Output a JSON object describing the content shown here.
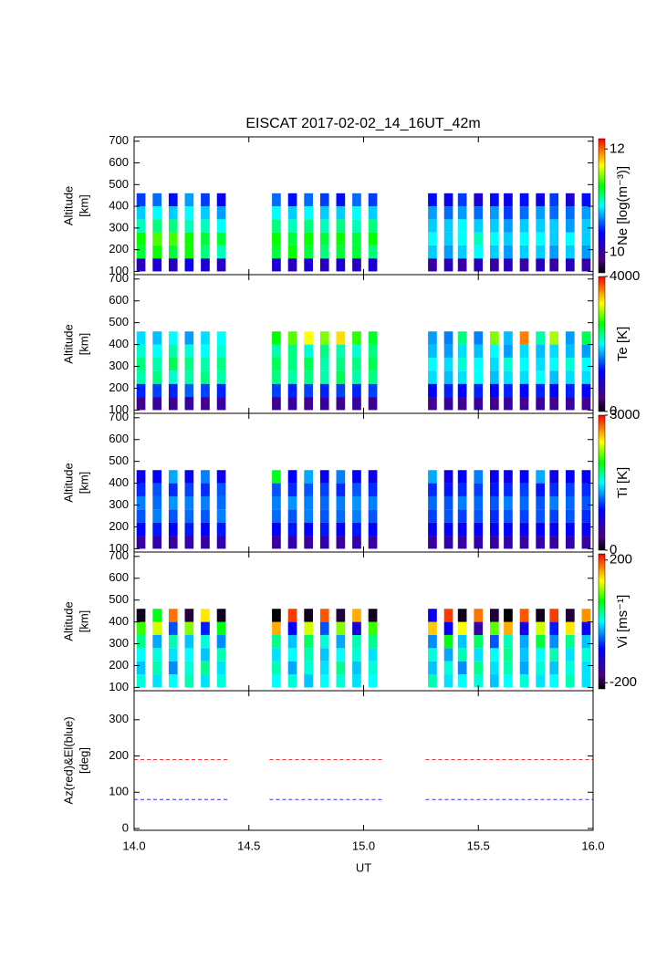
{
  "title": "EISCAT 2017-02-02_14_16UT_42m",
  "chart_data": [
    {
      "type": "heatmap",
      "ylabel": [
        "Altitude",
        "[km]"
      ],
      "colorbar_label": "Ne [log(m⁻³)]",
      "clim": [
        9.6,
        12.2
      ],
      "cticks": [
        10,
        12
      ],
      "xlim": [
        14,
        16
      ],
      "ylim": [
        85,
        720
      ],
      "yticks": [
        100,
        200,
        300,
        400,
        500,
        600,
        700
      ],
      "x": [
        14.03,
        14.1,
        14.17,
        14.24,
        14.31,
        14.38,
        14.62,
        14.69,
        14.76,
        14.83,
        14.9,
        14.97,
        15.04,
        15.3,
        15.37,
        15.43,
        15.5,
        15.57,
        15.63,
        15.7,
        15.77,
        15.83,
        15.9,
        15.97
      ],
      "y": [
        130,
        190,
        250,
        310,
        370,
        430
      ],
      "values": [
        [
          10.1,
          11.2,
          11.3,
          11.0,
          10.8,
          10.5
        ],
        [
          10.2,
          11.3,
          11.4,
          11.1,
          10.9,
          10.6
        ],
        [
          10.1,
          11.2,
          11.4,
          11.1,
          10.8,
          10.4
        ],
        [
          10.3,
          11.3,
          11.3,
          11.0,
          10.9,
          10.7
        ],
        [
          10.2,
          11.1,
          11.2,
          11.0,
          10.8,
          10.5
        ],
        [
          10.1,
          11.0,
          11.2,
          10.9,
          10.7,
          10.3
        ],
        [
          10.2,
          11.2,
          11.3,
          11.1,
          10.9,
          10.6
        ],
        [
          10.1,
          11.3,
          11.2,
          11.0,
          10.8,
          10.4
        ],
        [
          10.2,
          11.2,
          11.3,
          11.1,
          10.9,
          10.6
        ],
        [
          10.1,
          11.1,
          11.2,
          11.0,
          10.8,
          10.5
        ],
        [
          10.2,
          11.2,
          11.3,
          11.1,
          10.8,
          10.4
        ],
        [
          10.1,
          11.2,
          11.2,
          11.0,
          10.9,
          10.6
        ],
        [
          10.2,
          11.1,
          11.3,
          11.1,
          10.8,
          10.5
        ],
        [
          10.0,
          10.8,
          10.9,
          10.8,
          10.7,
          10.4
        ],
        [
          10.1,
          10.7,
          10.8,
          10.8,
          10.6,
          10.3
        ],
        [
          10.0,
          10.8,
          10.9,
          10.9,
          10.7,
          10.5
        ],
        [
          10.1,
          10.9,
          11.0,
          10.8,
          10.6,
          10.2
        ],
        [
          10.0,
          10.8,
          10.9,
          10.8,
          10.7,
          10.4
        ],
        [
          10.1,
          10.7,
          10.8,
          10.7,
          10.5,
          10.3
        ],
        [
          10.0,
          10.8,
          10.9,
          10.8,
          10.6,
          10.4
        ],
        [
          10.1,
          10.8,
          10.9,
          10.8,
          10.7,
          10.3
        ],
        [
          10.0,
          10.7,
          10.8,
          10.8,
          10.6,
          10.5
        ],
        [
          10.1,
          10.8,
          10.9,
          10.7,
          10.6,
          10.2
        ],
        [
          10.0,
          10.7,
          10.8,
          10.8,
          10.7,
          10.4
        ]
      ]
    },
    {
      "type": "heatmap",
      "ylabel": [
        "Altitude",
        "[km]"
      ],
      "colorbar_label": "Te [K]",
      "clim": [
        0,
        4000
      ],
      "cticks": [
        0,
        4000
      ],
      "xlim": [
        14,
        16
      ],
      "ylim": [
        85,
        720
      ],
      "yticks": [
        100,
        200,
        300,
        400,
        500,
        600,
        700
      ],
      "x": [
        14.03,
        14.1,
        14.17,
        14.24,
        14.31,
        14.38,
        14.62,
        14.69,
        14.76,
        14.83,
        14.9,
        14.97,
        15.04,
        15.3,
        15.37,
        15.43,
        15.5,
        15.57,
        15.63,
        15.7,
        15.77,
        15.83,
        15.9,
        15.97
      ],
      "y": [
        130,
        190,
        250,
        310,
        370,
        430
      ],
      "values": [
        [
          500,
          1300,
          2200,
          2300,
          2100,
          1900
        ],
        [
          600,
          1400,
          2300,
          2200,
          2000,
          1800
        ],
        [
          500,
          1300,
          2100,
          2400,
          2200,
          2000
        ],
        [
          600,
          1500,
          2200,
          2300,
          2100,
          1700
        ],
        [
          500,
          1400,
          2300,
          2200,
          2000,
          1900
        ],
        [
          600,
          1300,
          2200,
          2300,
          2100,
          2000
        ],
        [
          500,
          1400,
          2300,
          2400,
          2200,
          2600
        ],
        [
          600,
          1300,
          2200,
          2300,
          2300,
          2800
        ],
        [
          500,
          1400,
          2300,
          2400,
          2100,
          3200
        ],
        [
          600,
          1300,
          2200,
          2200,
          2300,
          2900
        ],
        [
          500,
          1400,
          2400,
          2300,
          2200,
          3300
        ],
        [
          600,
          1300,
          2200,
          2300,
          2100,
          2700
        ],
        [
          500,
          1400,
          2300,
          2400,
          2300,
          2500
        ],
        [
          500,
          1200,
          1900,
          2000,
          1800,
          1700
        ],
        [
          600,
          1300,
          1800,
          1900,
          1700,
          1600
        ],
        [
          500,
          1200,
          1900,
          2100,
          1900,
          2300
        ],
        [
          600,
          1300,
          2000,
          2000,
          1800,
          1600
        ],
        [
          500,
          1200,
          1800,
          1900,
          2000,
          2900
        ],
        [
          600,
          1300,
          1900,
          2100,
          1700,
          1800
        ],
        [
          500,
          1200,
          1900,
          2000,
          1900,
          3600
        ],
        [
          600,
          1300,
          2000,
          1900,
          1800,
          2200
        ],
        [
          500,
          1200,
          1800,
          2000,
          1900,
          3000
        ],
        [
          600,
          1300,
          1900,
          2100,
          1800,
          1700
        ],
        [
          500,
          1200,
          1900,
          2000,
          1700,
          2400
        ]
      ]
    },
    {
      "type": "heatmap",
      "ylabel": [
        "Altitude",
        "[km]"
      ],
      "colorbar_label": "Ti [K]",
      "clim": [
        0,
        3000
      ],
      "cticks": [
        0,
        3000
      ],
      "xlim": [
        14,
        16
      ],
      "ylim": [
        85,
        720
      ],
      "yticks": [
        100,
        200,
        300,
        400,
        500,
        600,
        700
      ],
      "x": [
        14.03,
        14.1,
        14.17,
        14.24,
        14.31,
        14.38,
        14.62,
        14.69,
        14.76,
        14.83,
        14.9,
        14.97,
        15.04,
        15.3,
        15.37,
        15.43,
        15.5,
        15.57,
        15.63,
        15.7,
        15.77,
        15.83,
        15.9,
        15.97
      ],
      "y": [
        130,
        190,
        250,
        310,
        370,
        430
      ],
      "values": [
        [
          450,
          900,
          1100,
          1200,
          1000,
          800
        ],
        [
          500,
          950,
          1200,
          1150,
          1100,
          900
        ],
        [
          450,
          900,
          1100,
          1250,
          1000,
          1300
        ],
        [
          500,
          950,
          1150,
          1200,
          1050,
          850
        ],
        [
          450,
          900,
          1100,
          1200,
          1000,
          1200
        ],
        [
          500,
          950,
          1200,
          1150,
          1100,
          800
        ],
        [
          450,
          900,
          1150,
          1200,
          1100,
          1900
        ],
        [
          500,
          950,
          1100,
          1250,
          1000,
          900
        ],
        [
          450,
          900,
          1200,
          1200,
          1100,
          1300
        ],
        [
          500,
          950,
          1100,
          1150,
          1050,
          850
        ],
        [
          450,
          900,
          1150,
          1200,
          1000,
          1200
        ],
        [
          500,
          950,
          1200,
          1250,
          1100,
          900
        ],
        [
          450,
          900,
          1100,
          1200,
          1000,
          800
        ],
        [
          450,
          850,
          1050,
          1150,
          1000,
          1300
        ],
        [
          500,
          900,
          1100,
          1100,
          950,
          800
        ],
        [
          450,
          850,
          1050,
          1200,
          1000,
          900
        ],
        [
          500,
          900,
          1100,
          1150,
          1050,
          1200
        ],
        [
          450,
          850,
          1000,
          1100,
          950,
          850
        ],
        [
          500,
          900,
          1100,
          1200,
          1000,
          800
        ],
        [
          450,
          850,
          1050,
          1150,
          1050,
          900
        ],
        [
          500,
          900,
          1100,
          1100,
          950,
          1300
        ],
        [
          450,
          850,
          1050,
          1200,
          1000,
          800
        ],
        [
          500,
          900,
          1100,
          1150,
          1050,
          900
        ],
        [
          450,
          850,
          1000,
          1100,
          1000,
          850
        ]
      ]
    },
    {
      "type": "heatmap",
      "ylabel": [
        "Altitude",
        "[km]"
      ],
      "colorbar_label": "Vi [ms⁻¹]",
      "clim": [
        -220,
        220
      ],
      "cticks": [
        -200,
        200
      ],
      "xlim": [
        14,
        16
      ],
      "ylim": [
        85,
        720
      ],
      "yticks": [
        100,
        200,
        300,
        400,
        500,
        600,
        700
      ],
      "x": [
        14.03,
        14.1,
        14.17,
        14.24,
        14.31,
        14.38,
        14.62,
        14.69,
        14.76,
        14.83,
        14.9,
        14.97,
        15.04,
        15.3,
        15.37,
        15.43,
        15.5,
        15.57,
        15.63,
        15.7,
        15.77,
        15.83,
        15.9,
        15.97
      ],
      "y": [
        130,
        190,
        250,
        310,
        370,
        430
      ],
      "values": [
        [
          10,
          -20,
          0,
          30,
          80,
          -210
        ],
        [
          -10,
          20,
          10,
          -30,
          120,
          60
        ],
        [
          0,
          -40,
          -10,
          20,
          -60,
          180
        ],
        [
          20,
          10,
          0,
          -20,
          100,
          -200
        ],
        [
          -10,
          30,
          -20,
          10,
          -80,
          140
        ],
        [
          10,
          -10,
          20,
          -40,
          60,
          -210
        ],
        [
          0,
          20,
          -10,
          30,
          160,
          -220
        ],
        [
          10,
          -30,
          0,
          -20,
          -90,
          200
        ],
        [
          -20,
          10,
          20,
          40,
          120,
          -210
        ],
        [
          0,
          -10,
          -20,
          10,
          -60,
          190
        ],
        [
          10,
          30,
          0,
          -30,
          100,
          -200
        ],
        [
          -10,
          -20,
          10,
          20,
          -120,
          160
        ],
        [
          0,
          10,
          -10,
          30,
          80,
          -210
        ],
        [
          20,
          -20,
          10,
          -40,
          150,
          -100
        ],
        [
          -10,
          10,
          -30,
          60,
          -90,
          200
        ],
        [
          0,
          -40,
          20,
          -20,
          130,
          -210
        ],
        [
          10,
          30,
          -10,
          40,
          -150,
          180
        ],
        [
          -20,
          -10,
          0,
          -60,
          90,
          -200
        ],
        [
          0,
          20,
          30,
          20,
          160,
          -220
        ],
        [
          10,
          -30,
          -20,
          -30,
          -110,
          190
        ],
        [
          -10,
          10,
          0,
          50,
          120,
          -210
        ],
        [
          0,
          -20,
          20,
          -40,
          -80,
          200
        ],
        [
          20,
          10,
          -10,
          30,
          140,
          -200
        ],
        [
          -10,
          -10,
          10,
          -20,
          -100,
          170
        ]
      ]
    },
    {
      "type": "line",
      "ylabel": [
        "Az(red)&El(blue)",
        "[deg]"
      ],
      "xlabel": "UT",
      "xlim": [
        14,
        16
      ],
      "ylim": [
        -5,
        380
      ],
      "yticks": [
        0,
        100,
        200,
        300
      ],
      "xticks": [
        {
          "value": 14,
          "label": "14.0"
        },
        14.5,
        {
          "value": 15,
          "label": "15.0"
        },
        15.5,
        {
          "value": 16,
          "label": "16.0"
        }
      ],
      "x": [
        14.0,
        14.41,
        14.5,
        14.59,
        15.08,
        15.18,
        15.27,
        16.0
      ],
      "series": [
        {
          "color": "#ff3030",
          "values": [
            190,
            190,
            null,
            190,
            190,
            null,
            190,
            190
          ]
        },
        {
          "color": "#3030ff",
          "values": [
            80,
            80,
            null,
            80,
            80,
            null,
            80,
            80
          ]
        }
      ]
    }
  ]
}
